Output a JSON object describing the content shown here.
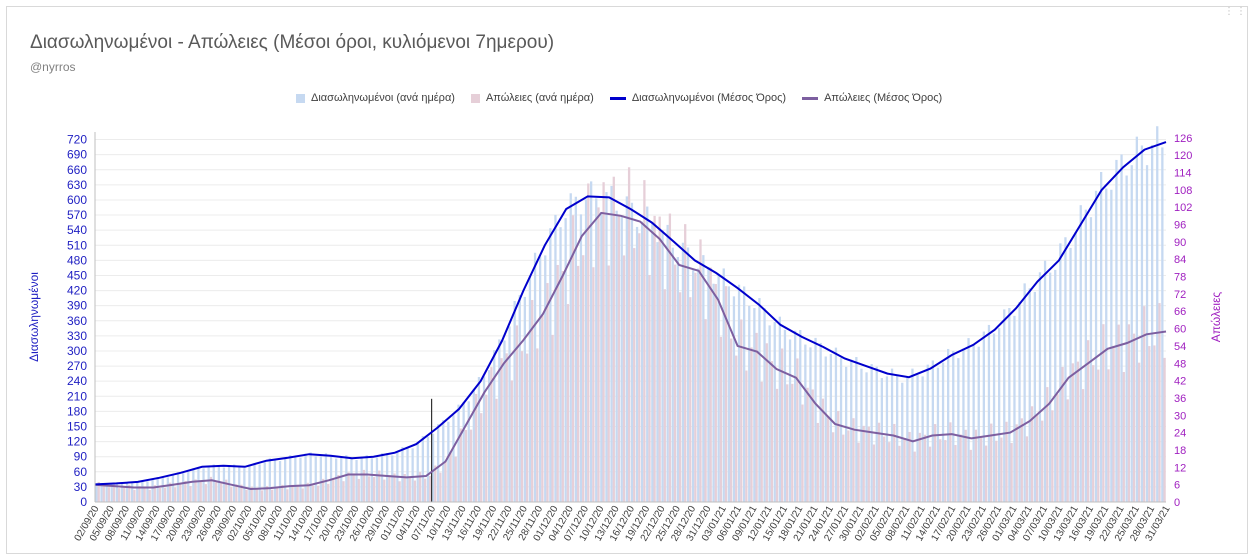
{
  "title": "Διασωληνωμένοι - Απώλειες (Μέσοι όροι, κυλιόμενοι 7ημερου)",
  "subtitle": "@nyrros",
  "legend": [
    {
      "label": "Διασωληνωμένοι (ανά ημέρα)",
      "color": "#c6d9f1",
      "kind": "box"
    },
    {
      "label": "Απώλειες (ανά ημέρα)",
      "color": "#e6cfd8",
      "kind": "box"
    },
    {
      "label": "Διασωληνωμένοι (Μέσος Όρος)",
      "color": "#0000cc",
      "kind": "line"
    },
    {
      "label": "Απώλειες (Μέσος Όρος)",
      "color": "#7d5fa0",
      "kind": "line"
    }
  ],
  "chart_data": {
    "type": "bar",
    "title": "Διασωληνωμένοι - Απώλειες (Μέσοι όροι, κυλιόμενοι 7ημερου)",
    "ylabel": "Διασωληνωμένοι",
    "y2label": "Απώλειες",
    "ylim": [
      0,
      735
    ],
    "y2lim": [
      0,
      128
    ],
    "yticks": [
      0,
      30,
      60,
      90,
      120,
      150,
      180,
      210,
      240,
      270,
      300,
      330,
      360,
      390,
      420,
      450,
      480,
      510,
      540,
      570,
      600,
      630,
      660,
      690,
      720
    ],
    "y2ticks": [
      0,
      6,
      12,
      18,
      24,
      30,
      36,
      42,
      48,
      54,
      60,
      66,
      72,
      78,
      84,
      90,
      96,
      102,
      108,
      114,
      120,
      126
    ],
    "x_labels": [
      "02/09/20",
      "05/09/20",
      "08/09/20",
      "11/09/20",
      "14/09/20",
      "17/09/20",
      "20/09/20",
      "23/09/20",
      "26/09/20",
      "29/09/20",
      "02/10/20",
      "05/10/20",
      "08/10/20",
      "11/10/20",
      "14/10/20",
      "17/10/20",
      "20/10/20",
      "23/10/20",
      "26/10/20",
      "29/10/20",
      "01/11/20",
      "04/11/20",
      "07/11/20",
      "10/11/20",
      "13/11/20",
      "16/11/20",
      "19/11/20",
      "22/11/20",
      "25/11/20",
      "28/11/20",
      "01/12/20",
      "04/12/20",
      "07/12/20",
      "10/12/20",
      "13/12/20",
      "16/12/20",
      "19/12/20",
      "22/12/20",
      "25/12/20",
      "28/12/20",
      "31/12/20",
      "03/01/21",
      "06/01/21",
      "09/01/21",
      "12/01/21",
      "15/01/21",
      "18/01/21",
      "21/01/21",
      "24/01/21",
      "27/01/21",
      "30/01/21",
      "02/02/21",
      "05/02/21",
      "08/02/21",
      "11/02/21",
      "14/02/21",
      "17/02/21",
      "20/02/21",
      "23/02/21",
      "26/02/21",
      "01/03/21",
      "04/03/21",
      "07/03/21",
      "10/03/21",
      "13/03/21",
      "16/03/21",
      "19/03/21",
      "22/03/21",
      "25/03/21",
      "28/03/21",
      "31/03/21"
    ],
    "marker_line_date": "07/11/20",
    "series": [
      {
        "name": "Διασωληνωμένοι (Μέσος Όρος)",
        "axis": "left",
        "values": [
          35,
          37,
          40,
          48,
          58,
          70,
          72,
          70,
          82,
          88,
          95,
          92,
          87,
          90,
          98,
          115,
          148,
          185,
          240,
          320,
          420,
          510,
          582,
          607,
          605,
          582,
          555,
          518,
          480,
          455,
          425,
          392,
          352,
          328,
          308,
          285,
          270,
          255,
          248,
          265,
          292,
          312,
          342,
          385,
          438,
          480,
          550,
          620,
          665,
          700,
          715
        ]
      },
      {
        "name": "Απώλειες (Μέσος Όρος)",
        "axis": "right",
        "values": [
          6,
          5.5,
          5,
          5,
          6,
          7,
          7.5,
          6,
          4.5,
          4.8,
          5.5,
          5.8,
          7.5,
          9.5,
          9.5,
          9,
          8.5,
          9,
          14,
          26,
          38,
          48,
          56,
          65,
          78,
          92,
          100,
          99,
          97,
          91,
          82,
          80,
          70,
          54,
          52,
          46,
          43,
          34,
          27,
          25,
          24,
          23,
          21,
          23,
          23.5,
          22,
          23,
          24,
          28,
          34,
          43,
          48,
          53,
          55,
          58,
          59
        ]
      }
    ]
  }
}
